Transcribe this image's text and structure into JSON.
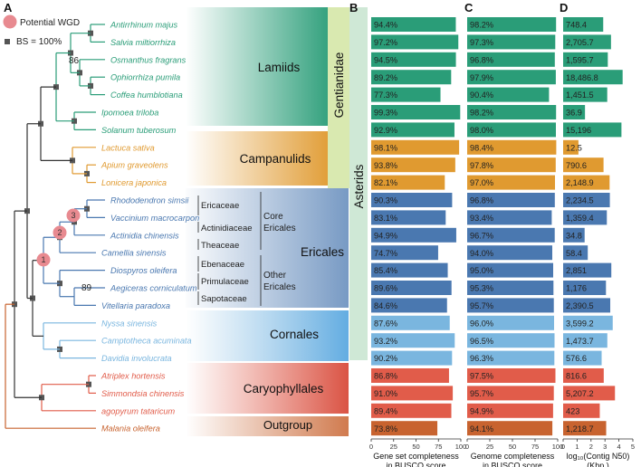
{
  "panels": {
    "A": "A",
    "B": "B",
    "C": "C",
    "D": "D"
  },
  "legend": {
    "wgd_label": "Potential WGD",
    "bs_label": "BS = 100%"
  },
  "groups": {
    "lamiids": "Lamiids",
    "campanulids": "Campanulids",
    "ericales": "Ericales",
    "cornales": "Cornales",
    "caryophyllales": "Caryophyllales",
    "outgroup": "Outgroup",
    "gentianidae": "Gentianidae",
    "asterids": "Asterids"
  },
  "families": {
    "ericaceae": "Ericaceae",
    "actinidiaceae": "Actinidiaceae",
    "theaceae": "Theaceae",
    "ebenaceae": "Ebenaceae",
    "primulaceae": "Primulaceae",
    "sapotaceae": "Sapotaceae",
    "core_ericales_1": "Core",
    "core_ericales_2": "Ericales",
    "other_ericales_1": "Other",
    "other_ericales_2": "Ericales"
  },
  "tree": {
    "bootstrap_lamiids": "86",
    "bootstrap_ericales": "89"
  },
  "wgd_markers": [
    "1",
    "2",
    "3"
  ],
  "colors": {
    "lamiids": "#2a9d78",
    "campanulids": "#e09a30",
    "ericales": "#4a78b0",
    "cornales": "#7ab6df",
    "caryophyllales": "#e15c4a",
    "outgroup": "#c8632f",
    "wgd": "#e88a90",
    "node": "#555555"
  },
  "chart_data": [
    {
      "panel": "B",
      "type": "bar",
      "orientation": "horizontal",
      "title": "",
      "xlabel": "Gene set completeness in BUSCO score",
      "xlabel_lines": [
        "Gene set completeness",
        "in BUSCO score"
      ],
      "xlim": [
        0,
        100
      ],
      "xticks": [
        0,
        25,
        50,
        75,
        100
      ],
      "xticklabels": [
        "0",
        "25",
        "50",
        "75",
        "100"
      ],
      "categories": [
        "Antirrhinum majus",
        "Salvia miltiorrhiza",
        "Osmanthus fragrans",
        "Ophiorrhiza pumila",
        "Coffea humblotiana",
        "Ipomoea triloba",
        "Solanum tuberosum",
        "Lactuca sativa",
        "Apium graveolens",
        "Lonicera japonica",
        "Rhododendron simsii",
        "Vaccinium macrocarpon",
        "Actinidia chinensis",
        "Camellia sinensis",
        "Diospyros oleifera",
        "Aegiceras corniculatum",
        "Vitellaria paradoxa",
        "Nyssa sinensis",
        "Camptotheca acuminata",
        "Davidia involucrata",
        "Atriplex hortensis",
        "Simmondsia chinensis",
        "agopyrum tataricum",
        "Malania oleifera"
      ],
      "values": [
        94.4,
        97.2,
        94.5,
        89.2,
        77.3,
        99.3,
        92.9,
        98.1,
        93.8,
        82.1,
        90.3,
        83.1,
        94.9,
        74.7,
        85.4,
        89.6,
        84.6,
        87.6,
        93.2,
        90.2,
        86.8,
        91.0,
        89.4,
        73.8
      ],
      "labels": [
        "94.4%",
        "97.2%",
        "94.5%",
        "89.2%",
        "77.3%",
        "99.3%",
        "92.9%",
        "98.1%",
        "93.8%",
        "82.1%",
        "90.3%",
        "83.1%",
        "94.9%",
        "74.7%",
        "85.4%",
        "89.6%",
        "84.6%",
        "87.6%",
        "93.2%",
        "90.2%",
        "86.8%",
        "91.0%",
        "89.4%",
        "73.8%"
      ]
    },
    {
      "panel": "C",
      "type": "bar",
      "orientation": "horizontal",
      "title": "",
      "xlabel": "Genome completeness in BUSCO score",
      "xlabel_lines": [
        "Genome completeness",
        "in BUSCO score"
      ],
      "xlim": [
        0,
        100
      ],
      "xticks": [
        0,
        25,
        50,
        75,
        100
      ],
      "xticklabels": [
        "0",
        "25",
        "50",
        "75",
        "100"
      ],
      "values": [
        98.2,
        97.3,
        96.8,
        97.9,
        90.4,
        98.2,
        98.0,
        98.4,
        97.8,
        97.0,
        96.8,
        93.4,
        96.7,
        94.0,
        95.0,
        95.3,
        95.7,
        96.0,
        96.5,
        96.3,
        97.5,
        95.7,
        94.9,
        94.1
      ],
      "labels": [
        "98.2%",
        "97.3%",
        "96.8%",
        "97.9%",
        "90.4%",
        "98.2%",
        "98.0%",
        "98.4%",
        "97.8%",
        "97.0%",
        "96.8%",
        "93.4%",
        "96.7%",
        "94.0%",
        "95.0%",
        "95.3%",
        "95.7%",
        "96.0%",
        "96.5%",
        "96.3%",
        "97.5%",
        "95.7%",
        "94.9%",
        "94.1%"
      ]
    },
    {
      "panel": "D",
      "type": "bar",
      "orientation": "horizontal",
      "scale": "log10",
      "title": "",
      "xlabel": "log10(Contig N50) (Kbp)",
      "xlabel_lines": [
        "log₁₀(Contig N50)",
        "(Kbp )"
      ],
      "xlim": [
        0,
        5
      ],
      "xticks": [
        0,
        1,
        2,
        3,
        4,
        5
      ],
      "xticklabels": [
        "0",
        "1",
        "2",
        "3",
        "4",
        "5"
      ],
      "values": [
        748.4,
        2705.7,
        1595.7,
        18486.8,
        1451.5,
        36.9,
        15196,
        12.5,
        790.6,
        2148.9,
        2234.5,
        1359.4,
        34.8,
        58.4,
        2851,
        1176,
        2390.5,
        3599.2,
        1473.7,
        576.6,
        816.6,
        5207.2,
        423,
        1218.7
      ],
      "labels": [
        "748.4",
        "2,705.7",
        "1,595.7",
        "18,486.8",
        "1,451.5",
        "36.9",
        "15,196",
        "12.5",
        "790.6",
        "2,148.9",
        "2,234.5",
        "1,359.4",
        "34.8",
        "58.4",
        "2,851",
        "1,176",
        "2,390.5",
        "3,599.2",
        "1,473.7",
        "576.6",
        "816.6",
        "5,207.2",
        "423",
        "1,218.7"
      ]
    }
  ],
  "species_groups": [
    "lamiids",
    "lamiids",
    "lamiids",
    "lamiids",
    "lamiids",
    "lamiids",
    "lamiids",
    "campanulids",
    "campanulids",
    "campanulids",
    "ericales",
    "ericales",
    "ericales",
    "ericales",
    "ericales",
    "ericales",
    "ericales",
    "cornales",
    "cornales",
    "cornales",
    "caryophyllales",
    "caryophyllales",
    "caryophyllales",
    "outgroup"
  ]
}
